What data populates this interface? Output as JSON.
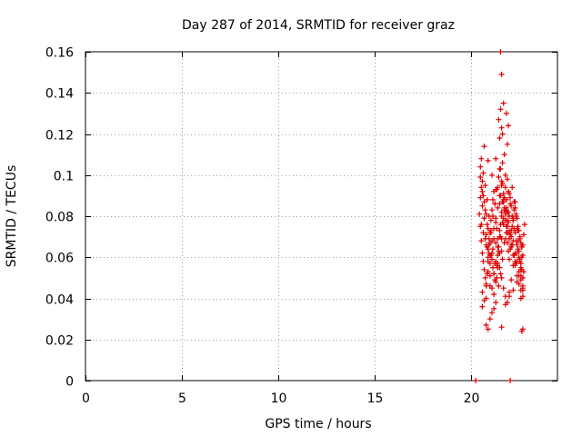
{
  "chart_data": {
    "type": "scatter",
    "title": "Day 287 of 2014, SRMTID for receiver graz",
    "xlabel": "GPS time / hours",
    "ylabel": "SRMTID / TECUs",
    "xlim": [
      0,
      24.5
    ],
    "ylim": [
      0,
      0.16
    ],
    "x_ticks": [
      0,
      5,
      10,
      15,
      20
    ],
    "x_tick_labels": [
      "0",
      "5",
      "10",
      "15",
      "20"
    ],
    "y_ticks": [
      0,
      0.02,
      0.04,
      0.06,
      0.08,
      0.1,
      0.12,
      0.14,
      0.16
    ],
    "y_tick_labels": [
      "0",
      "0.02",
      "0.04",
      "0.06",
      "0.08",
      "0.1",
      "0.12",
      "0.14",
      "0.16"
    ],
    "grid": true,
    "marker": "+",
    "color": "#dd0000",
    "series": [
      {
        "name": "SRMTID",
        "x": [
          20.45,
          20.5,
          20.55,
          20.6,
          20.65,
          20.7,
          20.75,
          20.8,
          20.85,
          20.9,
          20.95,
          21.0,
          21.05,
          21.1,
          21.15,
          21.2,
          21.25,
          21.3,
          21.35,
          21.4,
          21.45,
          21.5,
          21.55,
          21.6,
          21.65,
          21.7,
          21.75,
          21.8,
          21.85,
          21.9,
          21.95,
          22.0,
          22.05,
          22.1,
          22.15,
          22.2,
          22.25,
          22.3,
          22.35,
          22.4,
          22.45,
          22.5,
          22.55,
          22.6,
          22.65,
          22.7,
          22.75,
          22.8,
          20.5,
          20.6,
          20.7,
          20.8,
          20.9,
          21.0,
          21.1,
          21.2,
          21.3,
          21.4,
          21.5,
          21.6,
          21.7,
          21.8,
          21.9,
          22.0,
          22.1,
          22.2,
          22.3,
          22.4,
          22.5,
          22.6,
          22.7,
          20.55,
          20.65,
          20.75,
          20.85,
          20.95,
          21.05,
          21.15,
          21.25,
          21.35,
          21.45,
          21.55,
          21.65,
          21.75,
          21.85,
          21.95,
          22.05,
          22.15,
          22.25,
          22.35,
          22.45,
          22.55,
          22.65,
          20.5,
          20.6,
          20.7,
          20.8,
          20.9,
          21.0,
          21.1,
          21.2,
          21.3,
          21.4,
          21.5,
          21.6,
          21.7,
          21.8,
          21.9,
          22.0,
          22.1,
          22.2,
          22.3,
          22.4,
          22.5,
          22.6,
          22.7,
          20.55,
          20.65,
          20.75,
          20.85,
          20.95,
          21.05,
          21.15,
          21.25,
          21.35,
          21.45,
          21.55,
          21.65,
          21.75,
          21.85,
          21.95,
          22.05,
          22.15,
          22.25,
          22.35,
          22.45,
          22.55,
          22.65,
          20.5,
          20.6,
          20.7,
          20.8,
          20.9,
          21.0,
          21.1,
          21.2,
          21.3,
          21.4,
          21.5,
          21.6,
          21.7,
          21.8,
          21.9,
          22.0,
          22.1,
          22.2,
          22.3,
          22.4,
          22.5,
          22.6,
          22.7,
          20.6,
          20.7,
          20.8,
          20.9,
          21.0,
          21.1,
          21.2,
          21.3,
          21.4,
          21.5,
          21.6,
          21.7,
          21.8,
          21.9,
          22.0,
          22.1,
          22.2,
          22.3,
          22.4,
          22.5,
          22.6,
          22.7,
          20.55,
          20.65,
          20.75,
          20.85,
          20.95,
          21.05,
          21.15,
          21.25,
          21.35,
          21.45,
          21.55,
          21.65,
          21.75,
          21.85,
          21.95,
          22.05,
          22.15,
          22.25,
          22.35,
          22.45,
          22.55,
          22.65,
          20.6,
          20.8,
          21.0,
          21.2,
          21.4,
          21.6,
          21.8,
          22.0,
          22.2,
          22.4,
          22.6,
          20.7,
          20.9,
          21.1,
          21.3,
          21.5,
          21.7,
          21.9,
          22.1,
          22.3,
          22.5,
          22.7,
          21.55,
          21.6,
          21.7,
          21.85,
          21.45,
          21.6,
          21.65,
          21.5,
          21.9,
          21.75,
          21.65,
          21.5,
          21.8,
          21.6,
          21.4,
          21.55,
          21.7,
          21.85,
          21.9,
          22.0,
          20.8,
          20.9,
          21.0,
          21.1,
          21.2,
          21.3,
          21.6,
          21.8,
          22.0,
          22.2,
          22.4,
          22.6,
          22.7,
          22.65,
          22.75,
          21.3,
          21.55,
          21.95,
          22.6,
          22.7,
          20.25,
          22.05
        ],
        "y": [
          0.081,
          0.075,
          0.068,
          0.062,
          0.058,
          0.054,
          0.05,
          0.047,
          0.052,
          0.06,
          0.066,
          0.072,
          0.078,
          0.083,
          0.088,
          0.092,
          0.086,
          0.079,
          0.074,
          0.069,
          0.065,
          0.07,
          0.076,
          0.082,
          0.087,
          0.091,
          0.084,
          0.078,
          0.072,
          0.067,
          0.063,
          0.059,
          0.064,
          0.07,
          0.075,
          0.079,
          0.083,
          0.087,
          0.08,
          0.074,
          0.068,
          0.063,
          0.058,
          0.054,
          0.06,
          0.066,
          0.071,
          0.076,
          0.089,
          0.085,
          0.079,
          0.071,
          0.064,
          0.057,
          0.062,
          0.069,
          0.077,
          0.084,
          0.09,
          0.095,
          0.088,
          0.081,
          0.075,
          0.069,
          0.073,
          0.078,
          0.084,
          0.079,
          0.073,
          0.067,
          0.061,
          0.094,
          0.09,
          0.083,
          0.076,
          0.069,
          0.061,
          0.055,
          0.049,
          0.056,
          0.063,
          0.07,
          0.077,
          0.083,
          0.088,
          0.092,
          0.086,
          0.08,
          0.074,
          0.068,
          0.064,
          0.059,
          0.054,
          0.099,
          0.092,
          0.087,
          0.081,
          0.074,
          0.067,
          0.059,
          0.052,
          0.058,
          0.065,
          0.073,
          0.08,
          0.087,
          0.094,
          0.098,
          0.091,
          0.085,
          0.078,
          0.072,
          0.066,
          0.06,
          0.055,
          0.05,
          0.108,
          0.101,
          0.095,
          0.088,
          0.08,
          0.072,
          0.064,
          0.057,
          0.05,
          0.046,
          0.052,
          0.059,
          0.067,
          0.075,
          0.082,
          0.089,
          0.094,
          0.087,
          0.081,
          0.075,
          0.07,
          0.065,
          0.104,
          0.097,
          0.079,
          0.066,
          0.058,
          0.051,
          0.045,
          0.042,
          0.048,
          0.055,
          0.062,
          0.069,
          0.076,
          0.083,
          0.078,
          0.072,
          0.066,
          0.061,
          0.056,
          0.051,
          0.047,
          0.044,
          0.041,
          0.043,
          0.039,
          0.046,
          0.053,
          0.061,
          0.068,
          0.074,
          0.067,
          0.061,
          0.055,
          0.05,
          0.045,
          0.041,
          0.038,
          0.043,
          0.049,
          0.056,
          0.062,
          0.058,
          0.053,
          0.049,
          0.045,
          0.076,
          0.072,
          0.069,
          0.065,
          0.062,
          0.073,
          0.08,
          0.086,
          0.093,
          0.099,
          0.103,
          0.096,
          0.089,
          0.083,
          0.077,
          0.071,
          0.066,
          0.061,
          0.057,
          0.073,
          0.069,
          0.065,
          0.036,
          0.04,
          0.046,
          0.052,
          0.057,
          0.063,
          0.069,
          0.073,
          0.068,
          0.062,
          0.057,
          0.114,
          0.107,
          0.1,
          0.093,
          0.086,
          0.079,
          0.072,
          0.065,
          0.058,
          0.051,
          0.044,
          0.16,
          0.149,
          0.135,
          0.13,
          0.127,
          0.123,
          0.12,
          0.118,
          0.115,
          0.11,
          0.106,
          0.103,
          0.1,
          0.097,
          0.094,
          0.09,
          0.087,
          0.084,
          0.082,
          0.08,
          0.027,
          0.025,
          0.03,
          0.033,
          0.035,
          0.038,
          0.026,
          0.037,
          0.041,
          0.044,
          0.048,
          0.051,
          0.025,
          0.024,
          0.053,
          0.108,
          0.132,
          0.124,
          0.04,
          0.046,
          0.0,
          0.0
        ]
      }
    ]
  }
}
